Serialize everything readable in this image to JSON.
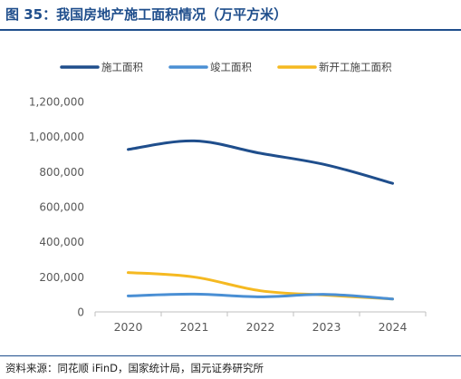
{
  "header": {
    "title": "图 35：我国房地产施工面积情况（万平方米）"
  },
  "source": {
    "text": "资料来源：同花顺 iFinD，国家统计局，国元证券研究所"
  },
  "colors": {
    "title": "#1f4e8c",
    "axis": "#bfbfbf",
    "text": "#595959"
  },
  "chart_data": {
    "type": "line",
    "title": "",
    "xlabel": "",
    "ylabel": "",
    "categories": [
      "2020",
      "2021",
      "2022",
      "2023",
      "2024"
    ],
    "ylim": [
      0,
      1200000
    ],
    "yticks": [
      0,
      200000,
      400000,
      600000,
      800000,
      1000000,
      1200000
    ],
    "ytick_labels": [
      "0",
      "200,000",
      "400,000",
      "600,000",
      "800,000",
      "1,000,000",
      "1,200,000"
    ],
    "grid": false,
    "smooth": true,
    "legend_position": "top",
    "series": [
      {
        "name": "施工面积",
        "color": "#1f4e8c",
        "values": [
          926759,
          975387,
          904999,
          838364,
          733247
        ]
      },
      {
        "name": "竣工面积",
        "color": "#4a8fd4",
        "values": [
          91218,
          101412,
          86222,
          99831,
          73743
        ]
      },
      {
        "name": "新开工施工面积",
        "color": "#f5b921",
        "values": [
          224433,
          198895,
          120587,
          95376,
          73893
        ]
      }
    ]
  }
}
